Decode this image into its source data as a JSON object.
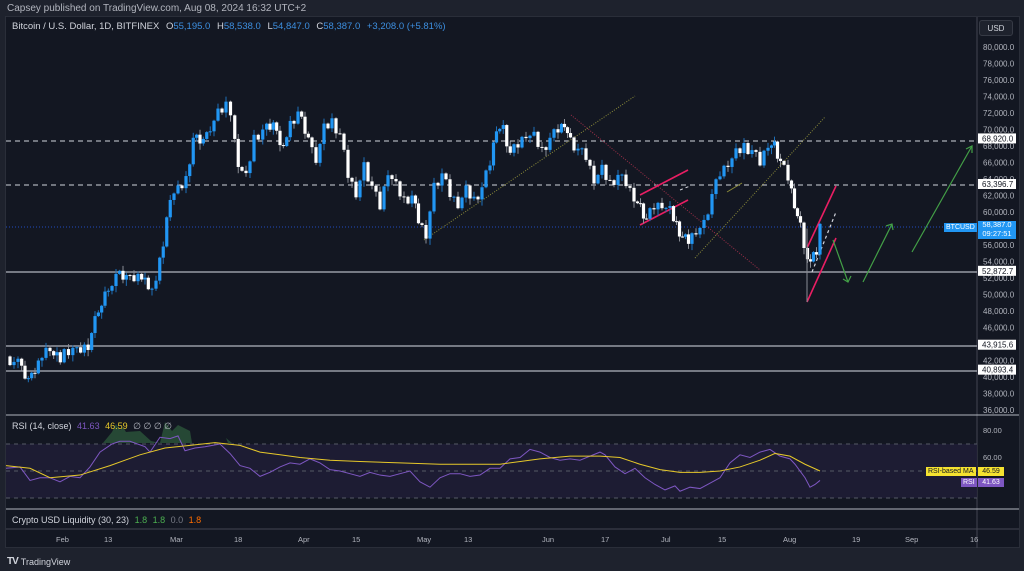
{
  "header": {
    "published": "Capsey published on TradingView.com, Aug 08, 2024 16:32 UTC+2"
  },
  "legend": {
    "symbol": "Bitcoin / U.S. Dollar, 1D, BITFINEX",
    "open_label": "O",
    "open": "55,195.0",
    "high_label": "H",
    "high": "58,538.0",
    "low_label": "L",
    "low": "54,847.0",
    "close_label": "C",
    "close": "58,387.0",
    "change": "+3,208.0 (+5.81%)"
  },
  "price_axis": {
    "currency_button": "USD",
    "ticks": [
      "80,000.0",
      "78,000.0",
      "76,000.0",
      "74,000.0",
      "72,000.0",
      "70,000.0",
      "68,000.0",
      "66,000.0",
      "64,000.0",
      "62,000.0",
      "60,000.0",
      "58,000.0",
      "56,000.0",
      "54,000.0",
      "52,000.0",
      "50,000.0",
      "48,000.0",
      "46,000.0",
      "44,000.0",
      "42,000.0",
      "40,000.0",
      "38,000.0",
      "36,000.0"
    ],
    "level_labels": [
      "68,920.0",
      "63,396.7",
      "52,872.7",
      "43,915.6",
      "40,893.4"
    ],
    "last_price": "58,387.0",
    "countdown": "09:27:51",
    "symbol_tag": "BTCUSD"
  },
  "rsi": {
    "title": "RSI (14, close)",
    "value": "41.63",
    "ma_value": "46.59",
    "extra": "∅ ∅ ∅ ∅",
    "ticks": [
      "80.00",
      "60.00"
    ],
    "ma_tag": "RSI-based MA",
    "rsi_tag": "RSI"
  },
  "liquidity": {
    "title": "Crypto USD Liquidity (30, 23)",
    "v1": "1.8",
    "v2": "1.8",
    "v3": "0.0",
    "v4": "1.8"
  },
  "time_axis": {
    "labels": [
      "Feb",
      "13",
      "Mar",
      "18",
      "Apr",
      "15",
      "May",
      "13",
      "Jun",
      "17",
      "Jul",
      "15",
      "Aug",
      "19",
      "Sep",
      "16"
    ]
  },
  "footer": {
    "logo": "TV",
    "brand": "TradingView"
  },
  "colors": {
    "up": "#2196f3",
    "down": "#ffffff",
    "rsi_line": "#7e57c2",
    "rsi_ma": "#e6c82a",
    "pink": "#e91e63",
    "green_arrow": "#43a047",
    "trend_olive": "#8d8d3a",
    "trend_red": "#a0304a"
  },
  "chart_data": {
    "type": "candlestick",
    "title": "Bitcoin / U.S. Dollar, 1D, BITFINEX",
    "xlabel": "",
    "ylabel": "USD",
    "ylim": [
      36000,
      81000
    ],
    "x_ticks": [
      "Feb",
      "13",
      "Mar",
      "18",
      "Apr",
      "15",
      "May",
      "13",
      "Jun",
      "17",
      "Jul",
      "15",
      "Aug",
      "19",
      "Sep",
      "16"
    ],
    "ohlc_last": {
      "open": 55195.0,
      "high": 58538.0,
      "low": 54847.0,
      "close": 58387.0,
      "change": 3208.0,
      "change_pct": 5.81
    },
    "horizontal_levels": [
      {
        "value": 68920.0,
        "style": "dashed"
      },
      {
        "value": 63396.7,
        "style": "dashed"
      },
      {
        "value": 52872.7,
        "style": "solid"
      },
      {
        "value": 43915.6,
        "style": "solid"
      },
      {
        "value": 40893.4,
        "style": "solid"
      }
    ],
    "approx_closes": [
      {
        "x": "late Jan",
        "close": 42000
      },
      {
        "x": "Feb 13",
        "close": 50000
      },
      {
        "x": "Mar 1",
        "close": 62000
      },
      {
        "x": "Mar 13",
        "close": 73000
      },
      {
        "x": "Apr 1",
        "close": 69000
      },
      {
        "x": "Apr 15",
        "close": 63500
      },
      {
        "x": "May 1",
        "close": 58000
      },
      {
        "x": "May 20",
        "close": 70000
      },
      {
        "x": "Jun 7",
        "close": 71000
      },
      {
        "x": "Jun 24",
        "close": 60500
      },
      {
        "x": "Jul 5",
        "close": 56500
      },
      {
        "x": "Jul 29",
        "close": 68500
      },
      {
        "x": "Aug 5",
        "close": 54000
      },
      {
        "x": "Aug 8",
        "close": 58387
      }
    ],
    "rsi": {
      "period": 14,
      "value": 41.63,
      "ma": 46.59,
      "ylim": [
        20,
        90
      ],
      "bands": [
        70,
        50,
        30
      ]
    },
    "liquidity": {
      "params": [
        30,
        23
      ],
      "values": [
        1.8,
        1.8,
        0.0,
        1.8
      ]
    }
  }
}
